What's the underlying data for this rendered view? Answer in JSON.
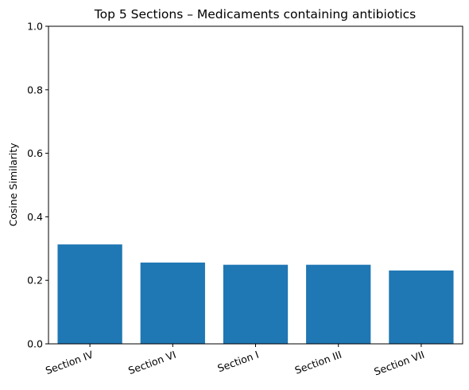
{
  "chart_data": {
    "type": "bar",
    "title": "Top 5 Sections – Medicaments containing antibiotics",
    "xlabel": "",
    "ylabel": "Cosine Similarity",
    "categories": [
      "Section IV",
      "Section VI",
      "Section I",
      "Section III",
      "Section VII"
    ],
    "values": [
      0.313,
      0.256,
      0.249,
      0.249,
      0.231
    ],
    "ylim": [
      0,
      1
    ],
    "yticks": [
      "0.0",
      "0.2",
      "0.4",
      "0.6",
      "0.8",
      "1.0"
    ],
    "bar_color": "#1f77b4",
    "grid": false,
    "legend": "none"
  }
}
